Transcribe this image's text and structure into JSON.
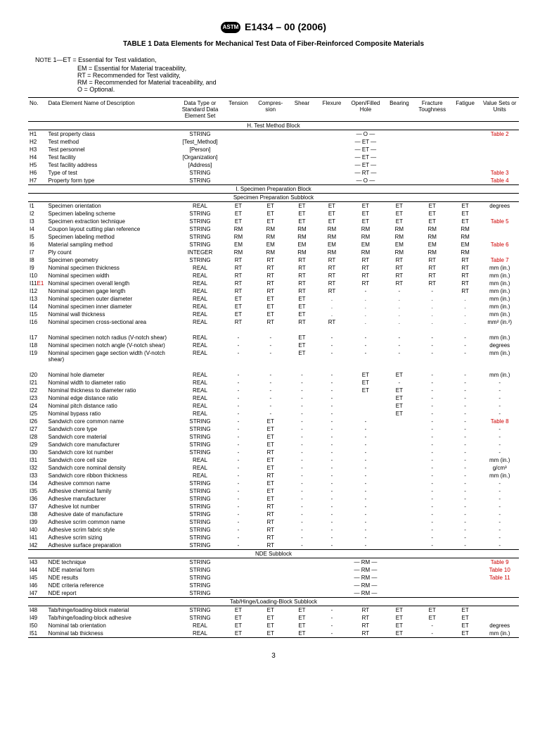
{
  "header": {
    "std": "E1434 – 00 (2006)"
  },
  "title": "TABLE 1 Data Elements for Mechanical Test Data of Fiber-Reinforced Composite Materials",
  "note": {
    "lead": "NOTE 1—ET = Essential for Test validation,",
    "l1": "EM = Essential for Material traceability,",
    "l2": "RT = Recommended for Test validity,",
    "l3": "RM = Recommended for Material traceability, and",
    "l4": "O = Optional."
  },
  "cols": [
    "No.",
    "Data Element Name of Description",
    "Data Type or Standard Data Element Set",
    "Tension",
    "Compres-sion",
    "Shear",
    "Flexure",
    "Open/Filled Hole",
    "Bearing",
    "Fracture Toughness",
    "Fatigue",
    "Value Sets or Units"
  ],
  "sections": [
    {
      "title": "H. Test Method Block",
      "rows": [
        {
          "no": "H1",
          "d": "Test property class",
          "t": "STRING",
          "v": [
            "",
            "",
            "",
            "",
            "— O —",
            "",
            "",
            "",
            ""
          ],
          "u": "Table 2",
          "ur": true
        },
        {
          "no": "H2",
          "d": "Test method",
          "t": "[Test_Method]",
          "v": [
            "",
            "",
            "",
            "",
            "— ET —",
            "",
            "",
            "",
            ""
          ],
          "u": ""
        },
        {
          "no": "H3",
          "d": "Test personnel",
          "t": "[Person]",
          "v": [
            "",
            "",
            "",
            "",
            "— ET —",
            "",
            "",
            "",
            ""
          ],
          "u": ""
        },
        {
          "no": "H4",
          "d": "Test facility",
          "t": "[Organization]",
          "v": [
            "",
            "",
            "",
            "",
            "— ET —",
            "",
            "",
            "",
            ""
          ],
          "u": ""
        },
        {
          "no": "H5",
          "d": "Test facility address",
          "t": "[Address]",
          "v": [
            "",
            "",
            "",
            "",
            "— ET —",
            "",
            "",
            "",
            ""
          ],
          "u": ""
        },
        {
          "no": "H6",
          "d": "Type of test",
          "t": "STRING",
          "v": [
            "",
            "",
            "",
            "",
            "— RT —",
            "",
            "",
            "",
            ""
          ],
          "u": "Table 3",
          "ur": true
        },
        {
          "no": "H7",
          "d": "Property form type",
          "t": "STRING",
          "v": [
            "",
            "",
            "",
            "",
            "— O —",
            "",
            "",
            "",
            ""
          ],
          "u": "Table 4",
          "ur": true
        }
      ]
    },
    {
      "title": "I. Specimen Preparation Block",
      "sub": "Specimen Preparation Subblock",
      "rows": [
        {
          "no": "I1",
          "d": "Specimen orientation",
          "t": "REAL",
          "v": [
            "ET",
            "ET",
            "ET",
            "ET",
            "ET",
            "ET",
            "ET",
            "ET"
          ],
          "u": "degrees"
        },
        {
          "no": "I2",
          "d": "Specimen labeling scheme",
          "t": "STRING",
          "v": [
            "ET",
            "ET",
            "ET",
            "ET",
            "ET",
            "ET",
            "ET",
            "ET"
          ],
          "u": ""
        },
        {
          "no": "I3",
          "d": "Specimen extraction technique",
          "t": "STRING",
          "v": [
            "ET",
            "ET",
            "ET",
            "ET",
            "ET",
            "ET",
            "ET",
            "ET"
          ],
          "u": "Table 5",
          "ur": true
        },
        {
          "no": "I4",
          "d": "Coupon layout cutting plan reference",
          "t": "STRING",
          "v": [
            "RM",
            "RM",
            "RM",
            "RM",
            "RM",
            "RM",
            "RM",
            "RM"
          ],
          "u": ""
        },
        {
          "no": "I5",
          "d": "Specimen labeling method",
          "t": "STRING",
          "v": [
            "RM",
            "RM",
            "RM",
            "RM",
            "RM",
            "RM",
            "RM",
            "RM"
          ],
          "u": ""
        },
        {
          "no": "I6",
          "d": "Material sampling method",
          "t": "STRING",
          "v": [
            "EM",
            "EM",
            "EM",
            "EM",
            "EM",
            "EM",
            "EM",
            "EM"
          ],
          "u": "Table 6",
          "ur": true
        },
        {
          "no": "I7",
          "d": "Ply count",
          "t": "INTEGER",
          "v": [
            "RM",
            "RM",
            "RM",
            "RM",
            "RM",
            "RM",
            "RM",
            "RM"
          ],
          "u": ""
        },
        {
          "no": "I8",
          "d": "Specimen geometry",
          "t": "STRING",
          "v": [
            "RT",
            "RT",
            "RT",
            "RT",
            "RT",
            "RT",
            "RT",
            "RT"
          ],
          "u": "Table 7",
          "ur": true
        },
        {
          "no": "I9",
          "d": "Nominal specimen thickness",
          "t": "REAL",
          "v": [
            "RT",
            "RT",
            "RT",
            "RT",
            "RT",
            "RT",
            "RT",
            "RT"
          ],
          "u": "mm (in.)"
        },
        {
          "no": "I10",
          "d": "Nominal specimen width",
          "t": "REAL",
          "v": [
            "RT",
            "RT",
            "RT",
            "RT",
            "RT",
            "RT",
            "RT",
            "RT"
          ],
          "u": "mm (in.)"
        },
        {
          "no": "I11",
          "pre": "E1",
          "d": "Nominal specimen overall length",
          "t": "REAL",
          "v": [
            "RT",
            "RT",
            "RT",
            "RT",
            "RT",
            "RT",
            "RT",
            "RT"
          ],
          "u": "mm (in.)"
        },
        {
          "no": "I12",
          "d": "Nominal specimen gage length",
          "t": "REAL",
          "v": [
            "RT",
            "RT",
            "RT",
            "RT",
            "-",
            "-",
            "-",
            "RT"
          ],
          "u": "mm (in.)"
        },
        {
          "no": "I13",
          "d": "Nominal specimen outer diameter",
          "t": "REAL",
          "v": [
            "ET",
            "ET",
            "ET",
            ".",
            ".",
            ".",
            ".",
            "."
          ],
          "u": "mm (in.)"
        },
        {
          "no": "I14",
          "d": "Nominal specimen inner diameter",
          "t": "REAL",
          "v": [
            "ET",
            "ET",
            "ET",
            ".",
            ".",
            ".",
            ".",
            "."
          ],
          "u": "mm (in.)"
        },
        {
          "no": "I15",
          "d": "Nominal wall thickness",
          "t": "REAL",
          "v": [
            "ET",
            "ET",
            "ET",
            ".",
            ".",
            ".",
            ".",
            "."
          ],
          "u": "mm (in.)"
        },
        {
          "no": "I16",
          "d": "Nominal specimen cross-sectional area",
          "t": "REAL",
          "v": [
            "RT",
            "RT",
            "RT",
            "RT",
            ".",
            ".",
            ".",
            "."
          ],
          "u": "mm² (in.²)"
        },
        {
          "no": "I17",
          "d": "Nominal specimen notch radius (V-notch shear)",
          "t": "REAL",
          "v": [
            "-",
            "-",
            "ET",
            "-",
            "-",
            "-",
            "-",
            "-"
          ],
          "u": "mm (in.)",
          "gap": true
        },
        {
          "no": "I18",
          "d": "Nominal specimen notch angle (V-notch shear)",
          "t": "REAL",
          "v": [
            "-",
            "-",
            "ET",
            "-",
            "-",
            "-",
            "-",
            "-"
          ],
          "u": "degrees"
        },
        {
          "no": "I19",
          "d": "Nominal specimen gage section width (V-notch shear)",
          "t": "REAL",
          "v": [
            "-",
            "-",
            "ET",
            "-",
            "-",
            "-",
            "-",
            "-"
          ],
          "u": "mm (in.)"
        },
        {
          "no": "I20",
          "d": "Nominal hole diameter",
          "t": "REAL",
          "v": [
            "-",
            "-",
            "-",
            "-",
            "ET",
            "ET",
            "-",
            "-"
          ],
          "u": "mm (in.)",
          "gap": true
        },
        {
          "no": "I21",
          "d": "Nominal width to diameter ratio",
          "t": "REAL",
          "v": [
            "-",
            "-",
            "-",
            "-",
            "ET",
            "-",
            "-",
            "-"
          ],
          "u": "-"
        },
        {
          "no": "I22",
          "d": "Nominal thickness to diameter ratio",
          "t": "REAL",
          "v": [
            "-",
            "-",
            "-",
            "-",
            "ET",
            "ET",
            "-",
            "-"
          ],
          "u": "-"
        },
        {
          "no": "I23",
          "d": "Nominal edge distance ratio",
          "t": "REAL",
          "v": [
            "-",
            "-",
            "-",
            "-",
            "",
            "ET",
            "-",
            "-"
          ],
          "u": "-"
        },
        {
          "no": "I24",
          "d": "Nominal pitch distance ratio",
          "t": "REAL",
          "v": [
            "-",
            "-",
            "-",
            "-",
            "",
            "ET",
            "-",
            "-"
          ],
          "u": "-"
        },
        {
          "no": "I25",
          "d": "Nominal bypass ratio",
          "t": "REAL",
          "v": [
            "-",
            "-",
            "-",
            "-",
            "",
            "ET",
            "-",
            "-"
          ],
          "u": "-"
        },
        {
          "no": "I26",
          "d": "Sandwich core common name",
          "t": "STRING",
          "v": [
            "-",
            "ET",
            "-",
            "-",
            "-",
            "",
            "-",
            "-"
          ],
          "u": "Table 8",
          "ur": true
        },
        {
          "no": "I27",
          "d": "Sandwich core type",
          "t": "STRING",
          "v": [
            "-",
            "ET",
            "-",
            "-",
            "-",
            "",
            "-",
            "-"
          ],
          "u": "-"
        },
        {
          "no": "I28",
          "d": "Sandwich core material",
          "t": "STRING",
          "v": [
            "-",
            "ET",
            "-",
            "-",
            "-",
            "",
            "-",
            "-"
          ],
          "u": "-"
        },
        {
          "no": "I29",
          "d": "Sandwich core manufacturer",
          "t": "STRING",
          "v": [
            "-",
            "ET",
            "-",
            "-",
            "-",
            "",
            "-",
            "-"
          ],
          "u": "-"
        },
        {
          "no": "I30",
          "d": "Sandwich core lot number",
          "t": "STRING",
          "v": [
            "-",
            "RT",
            "-",
            "-",
            "-",
            "",
            "-",
            "-"
          ],
          "u": "-"
        },
        {
          "no": "I31",
          "d": "Sandwich core cell size",
          "t": "REAL",
          "v": [
            "-",
            "ET",
            "-",
            "-",
            "-",
            "",
            "-",
            "-"
          ],
          "u": "mm (in.)"
        },
        {
          "no": "I32",
          "d": "Sandwich core nominal density",
          "t": "REAL",
          "v": [
            "-",
            "ET",
            "-",
            "-",
            "-",
            "",
            "-",
            "-"
          ],
          "u": "g/cm³"
        },
        {
          "no": "I33",
          "d": "Sandwich core ribbon thickness",
          "t": "REAL",
          "v": [
            "-",
            "RT",
            "-",
            "-",
            "-",
            "",
            "-",
            "-"
          ],
          "u": "mm (in.)"
        },
        {
          "no": "I34",
          "d": "Adhesive common name",
          "t": "STRING",
          "v": [
            "-",
            "ET",
            "-",
            "-",
            "-",
            "",
            "-",
            "-"
          ],
          "u": "-"
        },
        {
          "no": "I35",
          "d": "Adhesive chemical family",
          "t": "STRING",
          "v": [
            "-",
            "ET",
            "-",
            "-",
            "-",
            "",
            "-",
            "-"
          ],
          "u": "-"
        },
        {
          "no": "I36",
          "d": "Adhesive manufacturer",
          "t": "STRING",
          "v": [
            "-",
            "ET",
            "-",
            "-",
            "-",
            "",
            "-",
            "-"
          ],
          "u": "-"
        },
        {
          "no": "I37",
          "d": "Adhesive lot number",
          "t": "STRING",
          "v": [
            "-",
            "RT",
            "-",
            "-",
            "-",
            "",
            "-",
            "-"
          ],
          "u": "-"
        },
        {
          "no": "I38",
          "d": "Adhesive date of manufacture",
          "t": "STRING",
          "v": [
            "-",
            "RT",
            "-",
            "-",
            "-",
            "",
            "-",
            "-"
          ],
          "u": "-"
        },
        {
          "no": "I39",
          "d": "Adhesive scrim common name",
          "t": "STRING",
          "v": [
            "-",
            "RT",
            "-",
            "-",
            "-",
            "",
            "-",
            "-"
          ],
          "u": "-"
        },
        {
          "no": "I40",
          "d": "Adhesive scrim fabric style",
          "t": "STRING",
          "v": [
            "-",
            "RT",
            "-",
            "-",
            "-",
            "",
            "-",
            "-"
          ],
          "u": "-"
        },
        {
          "no": "I41",
          "d": "Adhesive scrim sizing",
          "t": "STRING",
          "v": [
            "-",
            "RT",
            "-",
            "-",
            "-",
            "",
            "-",
            "-"
          ],
          "u": "-"
        },
        {
          "no": "I42",
          "d": "Adhesive surface preparation",
          "t": "STRING",
          "v": [
            "-",
            "RT",
            "-",
            "-",
            "-",
            "",
            "-",
            "-"
          ],
          "u": "-"
        }
      ]
    },
    {
      "title": "NDE Subblock",
      "rows": [
        {
          "no": "I43",
          "d": "NDE technique",
          "t": "STRING",
          "v": [
            "",
            "",
            "",
            "",
            "— RM —",
            "",
            "",
            "",
            ""
          ],
          "u": "Table 9",
          "ur": true
        },
        {
          "no": "I44",
          "d": "NDE material form",
          "t": "STRING",
          "v": [
            "",
            "",
            "",
            "",
            "— RM —",
            "",
            "",
            "",
            ""
          ],
          "u": "Table 10",
          "ur": true
        },
        {
          "no": "I45",
          "d": "NDE results",
          "t": "STRING",
          "v": [
            "",
            "",
            "",
            "",
            "— RM —",
            "",
            "",
            "",
            ""
          ],
          "u": "Table 11",
          "ur": true
        },
        {
          "no": "I46",
          "d": "NDE criteria reference",
          "t": "STRING",
          "v": [
            "",
            "",
            "",
            "",
            "— RM —",
            "",
            "",
            "",
            ""
          ],
          "u": ""
        },
        {
          "no": "I47",
          "d": "NDE report",
          "t": "STRING",
          "v": [
            "",
            "",
            "",
            "",
            "— RM —",
            "",
            "",
            "",
            ""
          ],
          "u": ""
        }
      ]
    },
    {
      "title": "Tab/Hinge/Loading-Block Subblock",
      "rows": [
        {
          "no": "I48",
          "d": "Tab/hinge/loading-block material",
          "t": "STRING",
          "v": [
            "ET",
            "ET",
            "ET",
            "-",
            "RT",
            "ET",
            "ET",
            "ET"
          ],
          "u": ""
        },
        {
          "no": "I49",
          "d": "Tab/hinge/loading-block adhesive",
          "t": "STRING",
          "v": [
            "ET",
            "ET",
            "ET",
            "-",
            "RT",
            "ET",
            "ET",
            "ET"
          ],
          "u": ""
        },
        {
          "no": "I50",
          "d": "Nominal tab orientation",
          "t": "REAL",
          "v": [
            "ET",
            "ET",
            "ET",
            "-",
            "RT",
            "ET",
            "-",
            "ET"
          ],
          "u": "degrees"
        },
        {
          "no": "I51",
          "d": "Nominal tab thickness",
          "t": "REAL",
          "v": [
            "ET",
            "ET",
            "ET",
            "-",
            "RT",
            "ET",
            "-",
            "ET"
          ],
          "u": "mm (in.)"
        }
      ]
    }
  ],
  "page": "3"
}
